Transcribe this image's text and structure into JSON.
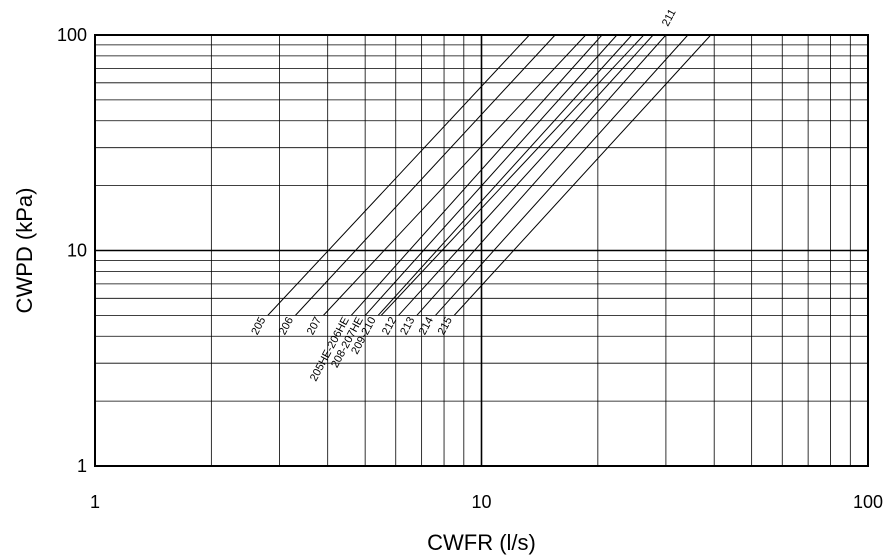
{
  "chart_data": {
    "type": "line",
    "xlabel": "CWFR (l/s)",
    "ylabel": "CWPD (kPa)",
    "x_scale": "log",
    "y_scale": "log",
    "xlim": [
      1,
      100
    ],
    "ylim": [
      1,
      100
    ],
    "x_ticks": [
      "1",
      "10",
      "100"
    ],
    "y_ticks": [
      "1",
      "10",
      "100"
    ],
    "grid": true,
    "series": [
      {
        "name": "205",
        "x": [
          2.8,
          13.3
        ],
        "y": [
          5,
          100
        ]
      },
      {
        "name": "206",
        "x": [
          3.3,
          15.5
        ],
        "y": [
          5,
          100
        ]
      },
      {
        "name": "207",
        "x": [
          3.9,
          18.6
        ],
        "y": [
          5,
          100
        ]
      },
      {
        "name": "205HE-206HE",
        "x": [
          4.6,
          20.5
        ],
        "y": [
          5,
          100
        ]
      },
      {
        "name": "208-207HE",
        "x": [
          5.0,
          22.4
        ],
        "y": [
          5,
          100
        ]
      },
      {
        "name": "209-210",
        "x": [
          5.4,
          24.5
        ],
        "y": [
          5,
          100
        ]
      },
      {
        "name": "211",
        "x": [
          5.5,
          26.3
        ],
        "y": [
          5,
          100
        ]
      },
      {
        "name": "212",
        "x": [
          6.1,
          27.8
        ],
        "y": [
          5,
          100
        ]
      },
      {
        "name": "213",
        "x": [
          6.8,
          30.0
        ],
        "y": [
          5,
          100
        ]
      },
      {
        "name": "214",
        "x": [
          7.6,
          34.2
        ],
        "y": [
          5,
          100
        ]
      },
      {
        "name": "215",
        "x": [
          8.5,
          39.2
        ],
        "y": [
          5,
          100
        ]
      }
    ]
  }
}
